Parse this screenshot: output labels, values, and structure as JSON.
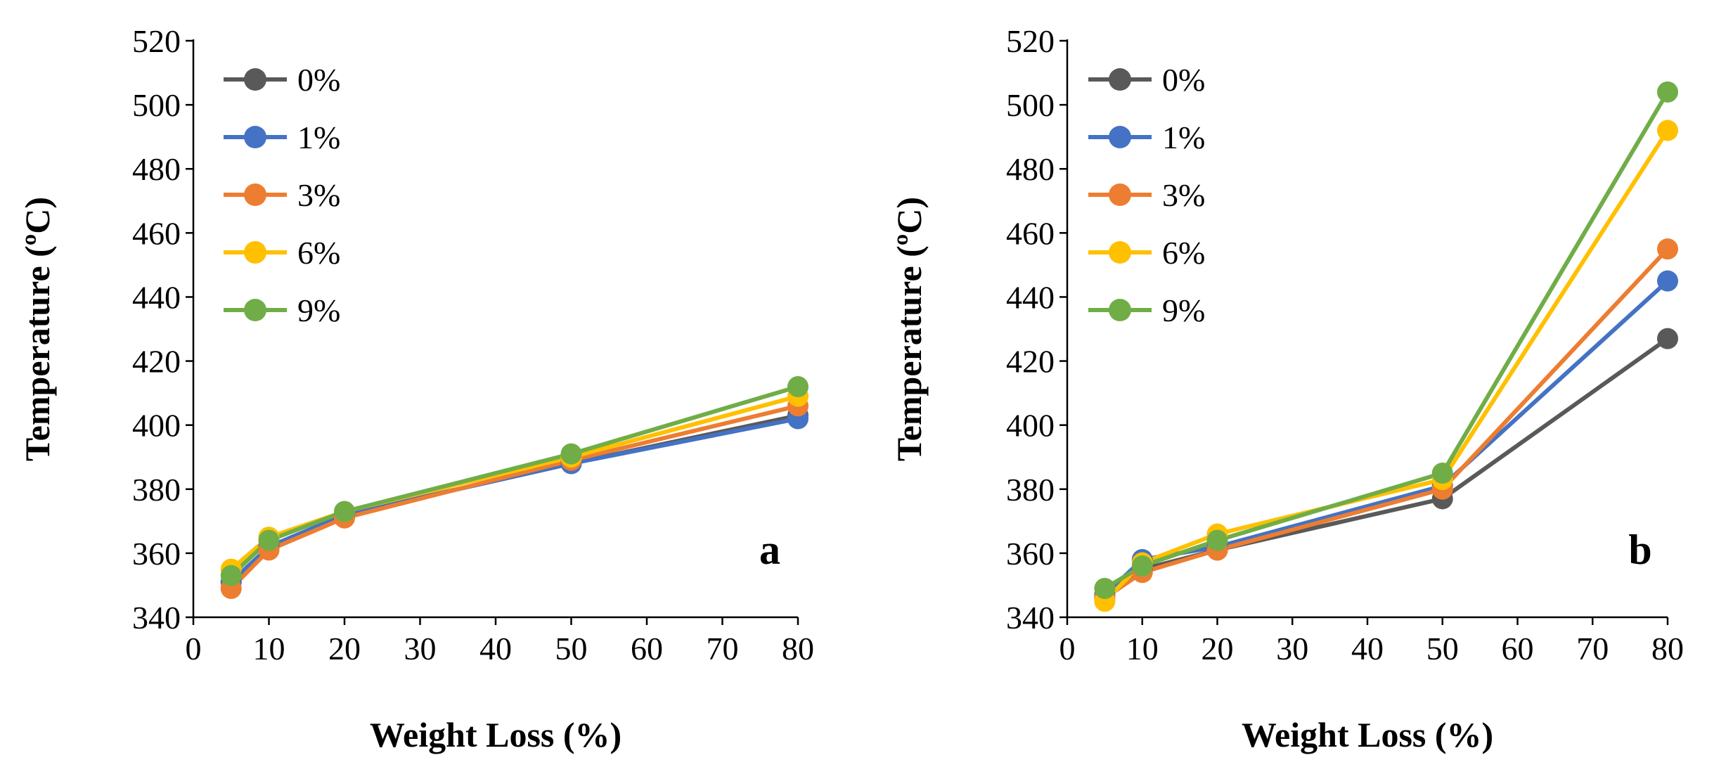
{
  "chart_data": [
    {
      "type": "line",
      "panel_label": "a",
      "title": "",
      "xlabel": "Weight Loss (%)",
      "ylabel": "Temperature (ºC)",
      "xlim": [
        0,
        80
      ],
      "ylim": [
        340,
        520
      ],
      "xticks": [
        "0",
        "10",
        "20",
        "30",
        "40",
        "50",
        "60",
        "70",
        "80"
      ],
      "yticks": [
        "340",
        "360",
        "380",
        "400",
        "420",
        "440",
        "460",
        "480",
        "500",
        "520"
      ],
      "grid": false,
      "legend_position": "top-left",
      "x": [
        5,
        10,
        20,
        50,
        80
      ],
      "series": [
        {
          "name": "0%",
          "color": "#595959",
          "values": [
            351,
            362,
            372,
            388,
            403
          ]
        },
        {
          "name": "1%",
          "color": "#4472C4",
          "values": [
            351,
            362,
            372,
            388,
            402
          ]
        },
        {
          "name": "3%",
          "color": "#ED7D31",
          "values": [
            349,
            361,
            371,
            389,
            406
          ]
        },
        {
          "name": "6%",
          "color": "#FFC000",
          "values": [
            355,
            365,
            373,
            390,
            409
          ]
        },
        {
          "name": "9%",
          "color": "#70AD47",
          "values": [
            353,
            364,
            373,
            391,
            412
          ]
        }
      ]
    },
    {
      "type": "line",
      "panel_label": "b",
      "title": "",
      "xlabel": "Weight Loss (%)",
      "ylabel": "Temperature (ºC)",
      "xlim": [
        0,
        80
      ],
      "ylim": [
        340,
        520
      ],
      "xticks": [
        "0",
        "10",
        "20",
        "30",
        "40",
        "50",
        "60",
        "70",
        "80"
      ],
      "yticks": [
        "340",
        "360",
        "380",
        "400",
        "420",
        "440",
        "460",
        "480",
        "500",
        "520"
      ],
      "grid": false,
      "legend_position": "top-left",
      "x": [
        5,
        10,
        20,
        50,
        80
      ],
      "series": [
        {
          "name": "0%",
          "color": "#595959",
          "values": [
            347,
            355,
            361,
            377,
            427
          ]
        },
        {
          "name": "1%",
          "color": "#4472C4",
          "values": [
            347,
            358,
            362,
            381,
            445
          ]
        },
        {
          "name": "3%",
          "color": "#ED7D31",
          "values": [
            346,
            354,
            361,
            380,
            455
          ]
        },
        {
          "name": "6%",
          "color": "#FFC000",
          "values": [
            345,
            357,
            366,
            383,
            492
          ]
        },
        {
          "name": "9%",
          "color": "#70AD47",
          "values": [
            349,
            356,
            364,
            385,
            504
          ]
        }
      ]
    }
  ]
}
